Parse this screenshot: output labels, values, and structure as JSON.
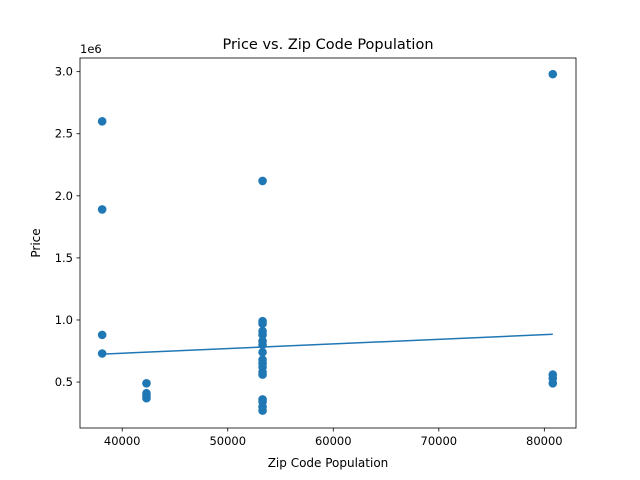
{
  "chart_data": {
    "type": "scatter",
    "title": "Price vs. Zip Code Population",
    "xlabel": "Zip Code Population",
    "ylabel": "Price",
    "y_offset_label": "1e6",
    "xlim": [
      36000,
      83000
    ],
    "ylim": [
      0.13,
      3.11
    ],
    "x_ticks": [
      40000,
      50000,
      60000,
      70000,
      80000
    ],
    "x_tick_labels": [
      "40000",
      "50000",
      "60000",
      "70000",
      "80000"
    ],
    "y_ticks": [
      0.5,
      1.0,
      1.5,
      2.0,
      2.5,
      3.0
    ],
    "y_tick_labels": [
      "0.5",
      "1.0",
      "1.5",
      "2.0",
      "2.5",
      "3.0"
    ],
    "grid": false,
    "color": "#1f77b4",
    "series": [
      {
        "kind": "scatter",
        "points": [
          [
            38100,
            2.6
          ],
          [
            38100,
            1.89
          ],
          [
            38100,
            0.88
          ],
          [
            38100,
            0.73
          ],
          [
            42300,
            0.49
          ],
          [
            42300,
            0.41
          ],
          [
            42300,
            0.39
          ],
          [
            42300,
            0.37
          ],
          [
            53300,
            2.12
          ],
          [
            53300,
            0.99
          ],
          [
            53300,
            0.97
          ],
          [
            53300,
            0.91
          ],
          [
            53300,
            0.88
          ],
          [
            53300,
            0.83
          ],
          [
            53300,
            0.8
          ],
          [
            53300,
            0.74
          ],
          [
            53300,
            0.68
          ],
          [
            53300,
            0.65
          ],
          [
            53300,
            0.62
          ],
          [
            53300,
            0.58
          ],
          [
            53300,
            0.56
          ],
          [
            53300,
            0.36
          ],
          [
            53300,
            0.34
          ],
          [
            53300,
            0.3
          ],
          [
            53300,
            0.27
          ],
          [
            80800,
            2.98
          ],
          [
            80800,
            0.56
          ],
          [
            80800,
            0.53
          ],
          [
            80800,
            0.49
          ]
        ]
      },
      {
        "kind": "line",
        "points": [
          [
            38100,
            0.725
          ],
          [
            80800,
            0.885
          ]
        ]
      }
    ]
  }
}
